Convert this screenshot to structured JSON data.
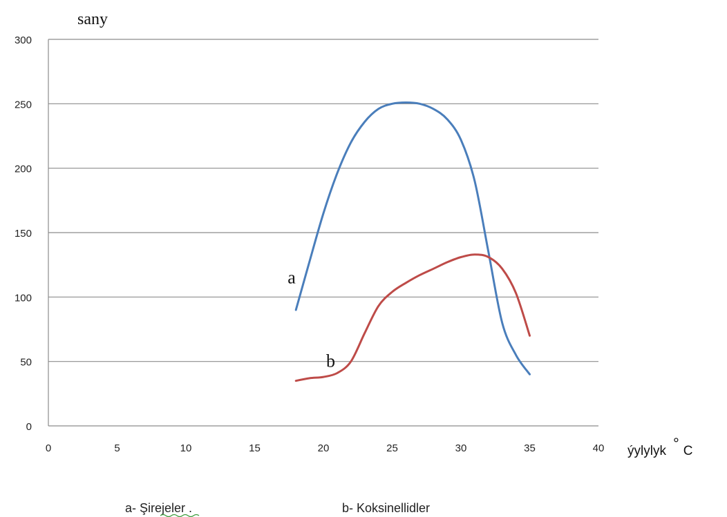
{
  "chart_data": {
    "type": "line",
    "ylabel": "sany",
    "xlabel_text": "ýylylyk",
    "xlabel_degree": "°",
    "xlabel_unit": "C",
    "xlim": [
      0,
      40
    ],
    "ylim": [
      0,
      300
    ],
    "xticks": [
      0,
      5,
      10,
      15,
      20,
      25,
      30,
      35,
      40
    ],
    "yticks": [
      0,
      50,
      100,
      150,
      200,
      250,
      300
    ],
    "grid": "horizontal",
    "colors": {
      "a": "#4a7ebb",
      "b": "#be4b48",
      "grid": "#8c8c8c"
    },
    "series": [
      {
        "name": "a",
        "color": "#4a7ebb",
        "x": [
          18,
          19,
          20,
          21,
          22,
          23,
          24,
          25,
          26,
          27,
          28,
          29,
          30,
          31,
          32,
          33,
          34,
          35
        ],
        "y": [
          90,
          128,
          165,
          196,
          220,
          236,
          246,
          250,
          251,
          250,
          246,
          238,
          222,
          190,
          135,
          80,
          55,
          40
        ]
      },
      {
        "name": "b",
        "color": "#be4b48",
        "x": [
          18,
          19,
          20,
          21,
          22,
          23,
          24,
          25,
          26,
          27,
          28,
          29,
          30,
          31,
          32,
          33,
          34,
          35
        ],
        "y": [
          35,
          37,
          38,
          41,
          50,
          72,
          93,
          104,
          111,
          117,
          122,
          127,
          131,
          133,
          131,
          122,
          103,
          70
        ]
      }
    ],
    "annotations": [
      {
        "text": "a",
        "x": 17,
        "y": 115
      },
      {
        "text": "b",
        "x": 19.8,
        "y": 50
      }
    ],
    "legend": [
      {
        "text": "a- Şirejeler ."
      },
      {
        "text": "b- Koksinellidler"
      }
    ]
  }
}
